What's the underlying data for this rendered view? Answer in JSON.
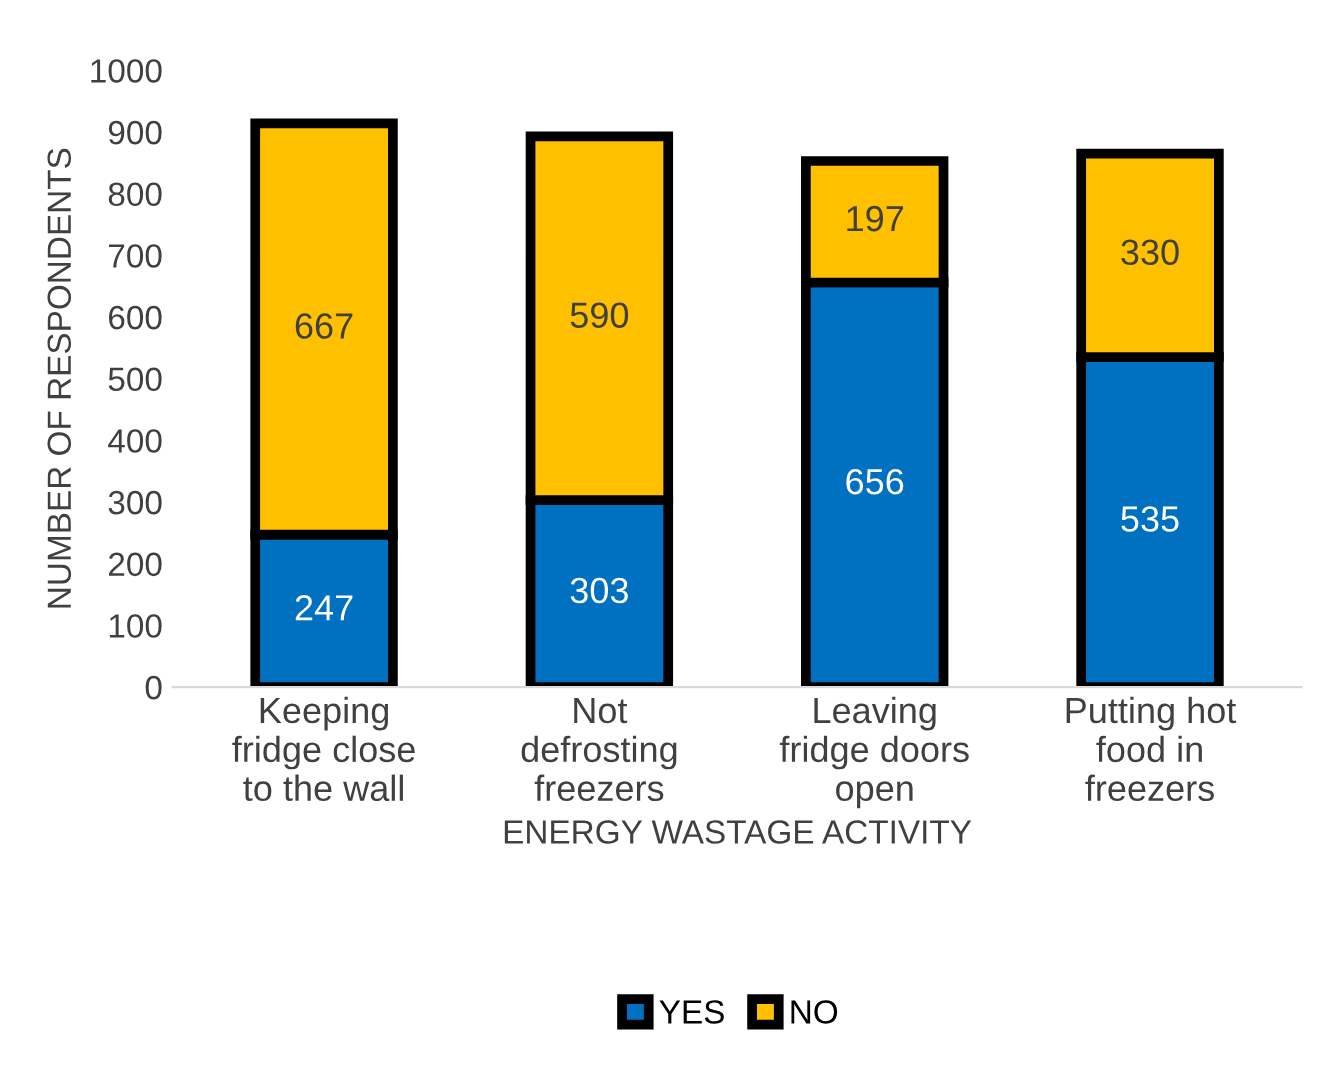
{
  "chart_data": {
    "type": "bar",
    "stacked": true,
    "xlabel": "ENERGY WASTAGE ACTIVITY",
    "ylabel": "NUMBER OF RESPONDENTS",
    "categories": [
      "Keeping\nfridge close\nto the wall",
      "Not\ndefrosting\nfreezers",
      "Leaving\nfridge doors\nopen",
      "Putting hot\nfood in\nfreezers"
    ],
    "series": [
      {
        "name": "YES",
        "color": "#0070c0",
        "values": [
          247,
          303,
          656,
          535
        ]
      },
      {
        "name": "NO",
        "color": "#ffc000",
        "values": [
          667,
          590,
          197,
          330
        ]
      }
    ],
    "ylim": [
      0,
      1000
    ],
    "yticks": [
      0,
      100,
      200,
      300,
      400,
      500,
      600,
      700,
      800,
      900,
      1000
    ],
    "data_labels": true,
    "grid": false,
    "legend": "bottom"
  }
}
